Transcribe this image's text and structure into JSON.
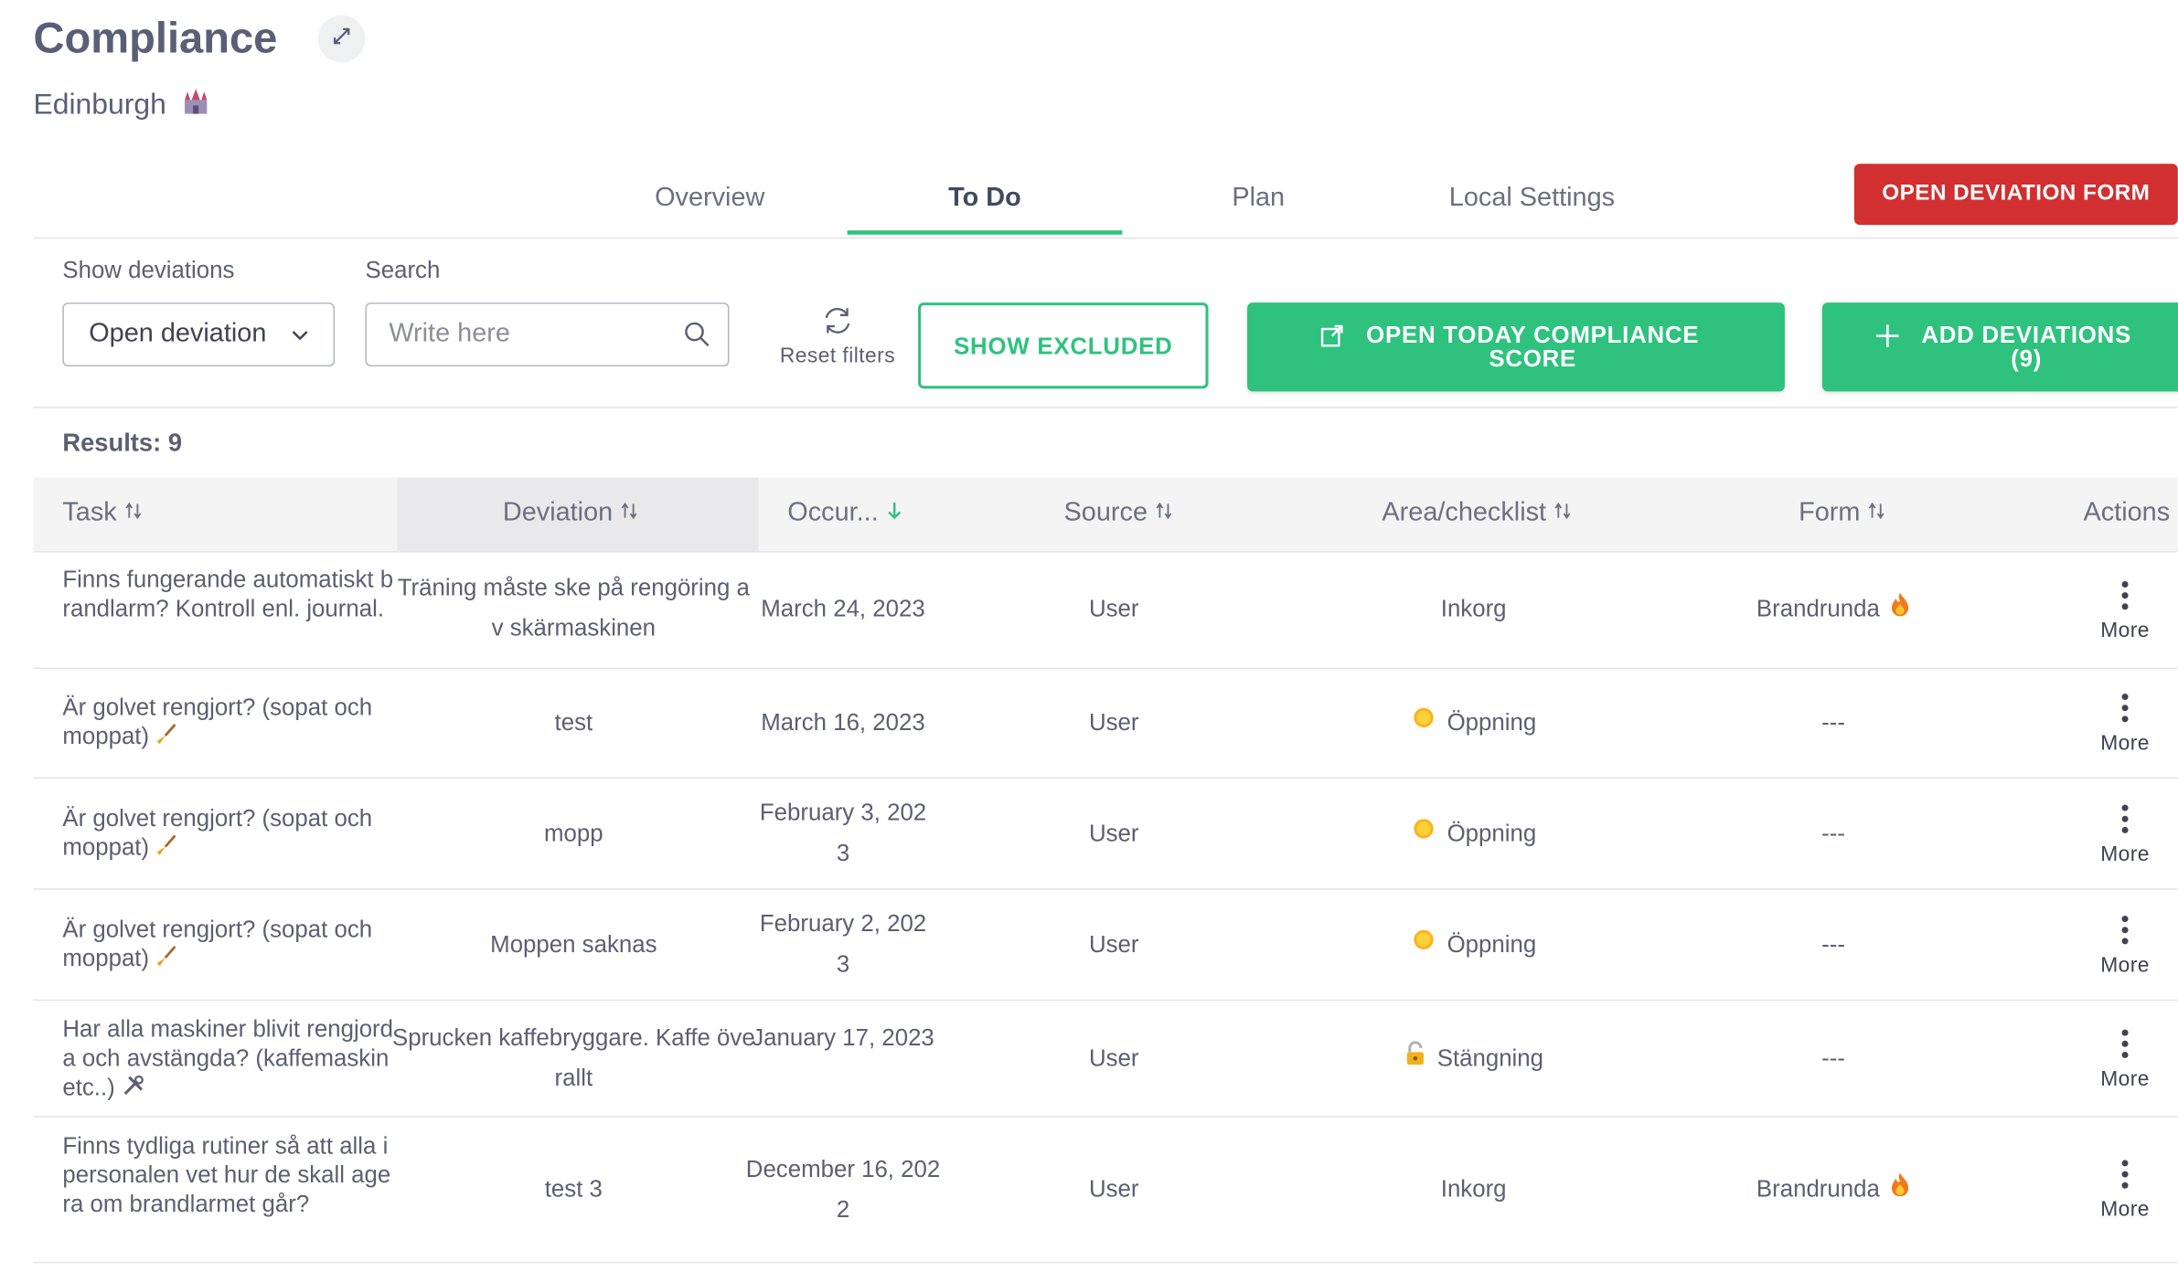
{
  "header": {
    "title": "Compliance",
    "location": "Edinburgh",
    "location_icon": "castle-icon"
  },
  "tabs": [
    {
      "label": "Overview",
      "active": false
    },
    {
      "label": "To Do",
      "active": true
    },
    {
      "label": "Plan",
      "active": false
    },
    {
      "label": "Local Settings",
      "active": false
    }
  ],
  "open_deviation_form_label": "OPEN DEVIATION FORM",
  "filters": {
    "show_deviations_label": "Show deviations",
    "show_deviations_value": "Open deviation",
    "search_label": "Search",
    "search_placeholder": "Write here",
    "reset_label": "Reset filters",
    "show_excluded_label": "SHOW EXCLUDED",
    "open_today_label": "OPEN TODAY COMPLIANCE SCORE",
    "add_deviations_label": "ADD DEVIATIONS (9)"
  },
  "results_label": "Results: 9",
  "table": {
    "columns": {
      "task": "Task",
      "deviation": "Deviation",
      "occurred": "Occur...",
      "source": "Source",
      "area": "Area/checklist",
      "form": "Form",
      "actions": "Actions"
    },
    "more_label": "More",
    "rows": [
      {
        "task": "Finns fungerande automatiskt brandlarm? Kontroll enl. journal.",
        "deviation": "Träning måste ske på rengöring av skärmaskinen",
        "occurred": "March 24, 2023",
        "source": "User",
        "area": "Inkorg",
        "area_icon": "",
        "form": "Brandrunda",
        "form_icon": "fire-icon"
      },
      {
        "task": "Är golvet rengjort? (sopat och moppat)",
        "task_icon": "broom-icon",
        "deviation": "test",
        "occurred": "March 16, 2023",
        "source": "User",
        "area": "Öppning",
        "area_icon": "sun-icon",
        "form": "---",
        "form_icon": ""
      },
      {
        "task": "Är golvet rengjort? (sopat och moppat)",
        "task_icon": "broom-icon",
        "deviation": "mopp",
        "occurred": "February 3, 2023",
        "source": "User",
        "area": "Öppning",
        "area_icon": "sun-icon",
        "form": "---",
        "form_icon": ""
      },
      {
        "task": "Är golvet rengjort? (sopat och moppat)",
        "task_icon": "broom-icon",
        "deviation": "Moppen saknas",
        "occurred": "February 2, 2023",
        "source": "User",
        "area": "Öppning",
        "area_icon": "sun-icon",
        "form": "---",
        "form_icon": ""
      },
      {
        "task": "Har alla maskiner blivit rengjorda och avstängda? (kaffemaskin etc..)",
        "task_icon": "tools-icon",
        "deviation": "Sprucken kaffebryggare. Kaffe överallt",
        "occurred": "January 17, 2023",
        "source": "User",
        "area": "Stängning",
        "area_icon": "lock-icon",
        "form": "---",
        "form_icon": ""
      },
      {
        "task": "Finns tydliga rutiner så att alla i personalen vet hur de skall agera om brandlarmet går?",
        "deviation": "test 3",
        "occurred": "December 16, 2022",
        "source": "User",
        "area": "Inkorg",
        "area_icon": "",
        "form": "Brandrunda",
        "form_icon": "fire-icon"
      }
    ]
  }
}
